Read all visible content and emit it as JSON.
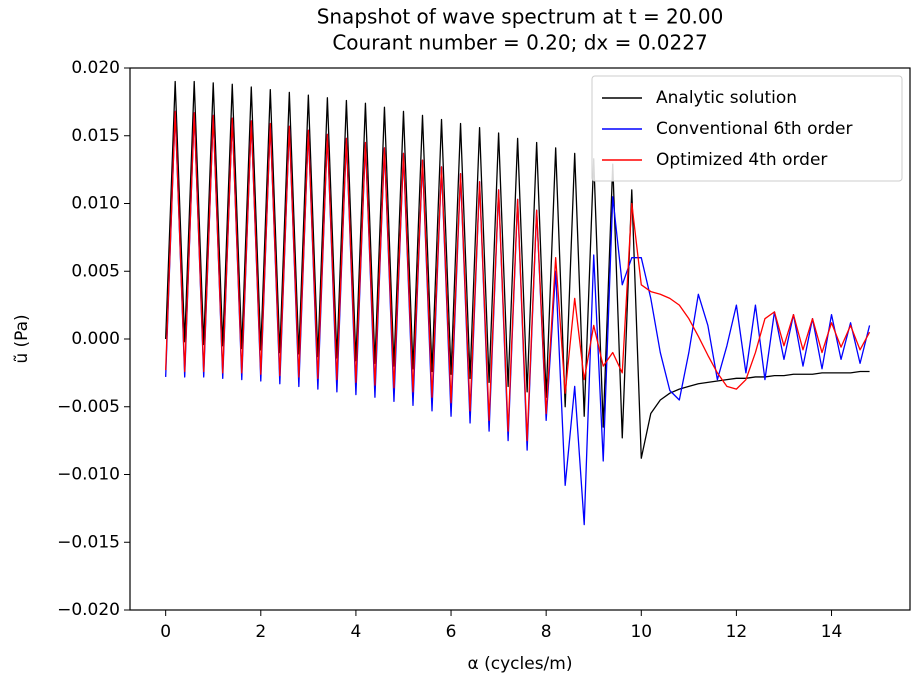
{
  "chart_data": {
    "type": "line",
    "title": "Snapshot of wave spectrum at t = 20.00",
    "subtitle": "Courant number = 0.20; dx = 0.0227",
    "x_label": "α (cycles/m)",
    "y_label": "ũ (Pa)",
    "x": [
      0,
      0.2,
      0.4,
      0.6,
      0.8,
      1.0,
      1.2,
      1.4,
      1.6,
      1.8,
      2.0,
      2.2,
      2.4,
      2.6,
      2.8,
      3.0,
      3.2,
      3.4,
      3.6,
      3.8,
      4.0,
      4.2,
      4.4,
      4.6,
      4.8,
      5.0,
      5.2,
      5.4,
      5.6,
      5.8,
      6.0,
      6.2,
      6.4,
      6.6,
      6.8,
      7.0,
      7.2,
      7.4,
      7.6,
      7.8,
      8.0,
      8.2,
      8.4,
      8.6,
      8.8,
      9.0,
      9.2,
      9.4,
      9.6,
      9.8,
      10.0,
      10.2,
      10.4,
      10.6,
      10.8,
      11.0,
      11.2,
      11.4,
      11.6,
      11.8,
      12.0,
      12.2,
      12.4,
      12.6,
      12.8,
      13.0,
      13.2,
      13.4,
      13.6,
      13.8,
      14.0,
      14.2,
      14.4,
      14.6,
      14.8
    ],
    "series": [
      {
        "name": "Analytic solution",
        "color": "#000000",
        "values": [
          0.0,
          0.019,
          -0.0002,
          0.019,
          -0.0004,
          0.0189,
          -0.0005,
          0.0188,
          -0.0007,
          0.0186,
          -0.0008,
          0.0184,
          -0.001,
          0.0182,
          -0.0011,
          0.018,
          -0.0013,
          0.0178,
          -0.0014,
          0.0176,
          -0.0016,
          0.0174,
          -0.0018,
          0.0171,
          -0.002,
          0.0168,
          -0.0022,
          0.0165,
          -0.0024,
          0.0162,
          -0.0026,
          0.0159,
          -0.0029,
          0.0156,
          -0.0032,
          0.0152,
          -0.0035,
          0.0148,
          -0.0039,
          0.0145,
          -0.0043,
          0.0141,
          -0.005,
          0.0137,
          -0.0057,
          0.0133,
          -0.0065,
          0.0129,
          -0.0073,
          0.011,
          -0.0088,
          -0.0055,
          -0.0045,
          -0.004,
          -0.0037,
          -0.0035,
          -0.0033,
          -0.0032,
          -0.0031,
          -0.003,
          -0.0029,
          -0.0029,
          -0.0028,
          -0.0028,
          -0.0027,
          -0.0027,
          -0.0026,
          -0.0026,
          -0.0026,
          -0.0025,
          -0.0025,
          -0.0025,
          -0.0025,
          -0.0024,
          -0.0024
        ]
      },
      {
        "name": "Conventional 6th order",
        "color": "#0000ff",
        "values": [
          -0.0028,
          0.0168,
          -0.0028,
          0.0167,
          -0.0028,
          0.0165,
          -0.0029,
          0.0163,
          -0.003,
          0.0161,
          -0.0031,
          0.0159,
          -0.0033,
          0.0157,
          -0.0035,
          0.0154,
          -0.0037,
          0.0151,
          -0.0039,
          0.0148,
          -0.0041,
          0.0145,
          -0.0043,
          0.0141,
          -0.0046,
          0.0137,
          -0.0049,
          0.0132,
          -0.0053,
          0.0127,
          -0.0057,
          0.0122,
          -0.0062,
          0.0116,
          -0.0068,
          0.011,
          -0.0075,
          0.0103,
          -0.0082,
          0.0095,
          -0.006,
          0.005,
          -0.0108,
          -0.0035,
          -0.0137,
          0.0062,
          -0.009,
          0.0105,
          0.004,
          0.006,
          0.006,
          0.003,
          -0.001,
          -0.0038,
          -0.0045,
          -0.001,
          0.0033,
          0.001,
          -0.003,
          -0.0005,
          0.0025,
          -0.0025,
          0.0025,
          -0.003,
          0.002,
          -0.0015,
          0.0018,
          -0.002,
          0.0015,
          -0.0022,
          0.0018,
          -0.0015,
          0.0012,
          -0.0018,
          0.001
        ]
      },
      {
        "name": "Optimized 4th order",
        "color": "#ff0000",
        "values": [
          -0.0023,
          0.0168,
          -0.0024,
          0.0167,
          -0.0024,
          0.0165,
          -0.0025,
          0.0163,
          -0.0025,
          0.0161,
          -0.0026,
          0.0159,
          -0.0027,
          0.0157,
          -0.0028,
          0.0154,
          -0.0029,
          0.0151,
          -0.003,
          0.0148,
          -0.0032,
          0.0145,
          -0.0034,
          0.0141,
          -0.0036,
          0.0137,
          -0.0039,
          0.0132,
          -0.0043,
          0.0127,
          -0.0047,
          0.0122,
          -0.0053,
          0.0116,
          -0.006,
          0.011,
          -0.0068,
          0.0103,
          -0.0075,
          0.0095,
          -0.0055,
          0.006,
          -0.004,
          0.003,
          -0.003,
          0.001,
          -0.002,
          -0.001,
          -0.0025,
          0.01,
          0.004,
          0.0035,
          0.0033,
          0.003,
          0.0025,
          0.0015,
          0.0002,
          -0.0012,
          -0.0025,
          -0.0035,
          -0.0037,
          -0.003,
          -0.001,
          0.0015,
          0.002,
          -0.0005,
          0.0018,
          -0.0008,
          0.0015,
          -0.001,
          0.0012,
          -0.0006,
          0.001,
          -0.0008,
          0.0005
        ]
      }
    ],
    "xlim": [
      -0.75,
      15.65
    ],
    "ylim": [
      -0.02,
      0.02
    ],
    "xticks": [
      0,
      2,
      4,
      6,
      8,
      10,
      12,
      14
    ],
    "yticks": [
      {
        "value": -0.02,
        "label": "−0.020"
      },
      {
        "value": -0.015,
        "label": "−0.015"
      },
      {
        "value": -0.01,
        "label": "−0.010"
      },
      {
        "value": -0.005,
        "label": "−0.005"
      },
      {
        "value": 0,
        "label": "0.000"
      },
      {
        "value": 0.005,
        "label": "0.005"
      },
      {
        "value": 0.01,
        "label": "0.010"
      },
      {
        "value": 0.015,
        "label": "0.015"
      },
      {
        "value": 0.02,
        "label": "0.020"
      }
    ],
    "legend": "upper right"
  }
}
